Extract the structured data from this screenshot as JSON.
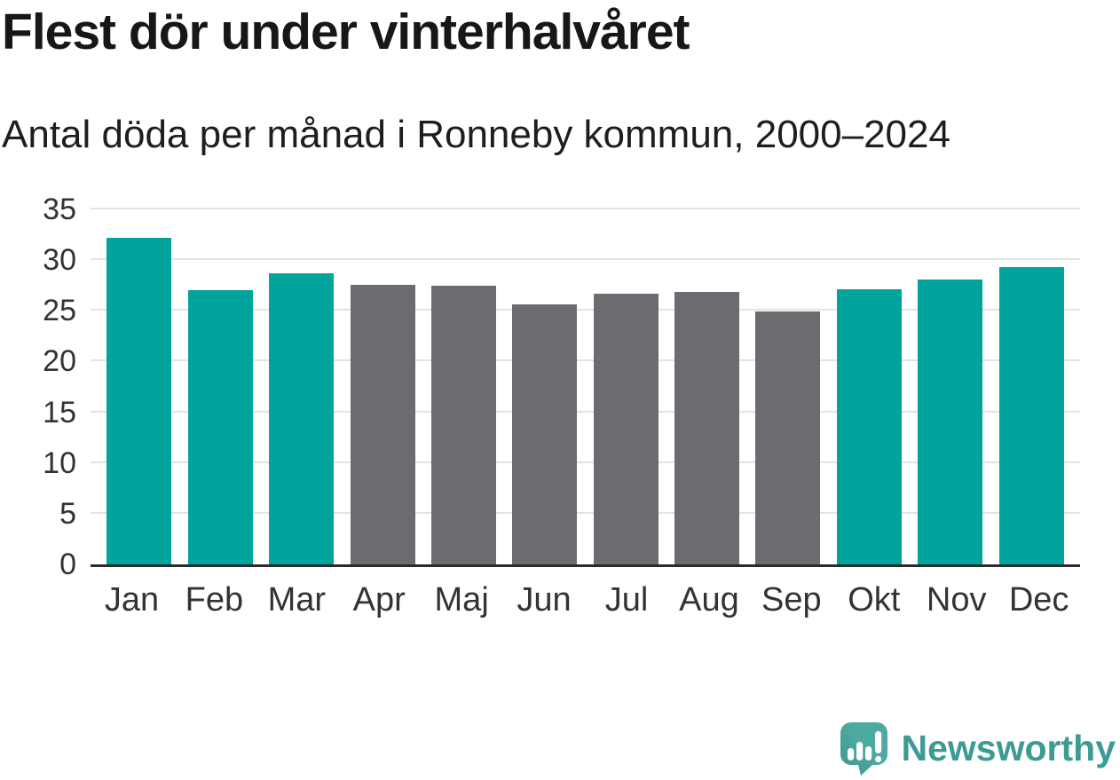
{
  "header": {
    "title": "Flest dör under vinterhalvåret",
    "subtitle": "Antal döda per månad i Ronneby kommun, 2000–2024"
  },
  "chart_data": {
    "type": "bar",
    "title": "Flest dör under vinterhalvåret",
    "subtitle": "Antal döda per månad i Ronneby kommun, 2000–2024",
    "categories": [
      "Jan",
      "Feb",
      "Mar",
      "Apr",
      "Maj",
      "Jun",
      "Jul",
      "Aug",
      "Sep",
      "Okt",
      "Nov",
      "Dec"
    ],
    "values": [
      32.2,
      27.0,
      28.7,
      27.6,
      27.5,
      25.6,
      26.7,
      26.9,
      24.9,
      27.1,
      28.1,
      29.3
    ],
    "bar_color_keys": [
      "teal",
      "teal",
      "teal",
      "gray",
      "gray",
      "gray",
      "gray",
      "gray",
      "gray",
      "teal",
      "teal",
      "teal"
    ],
    "xlabel": "",
    "ylabel": "",
    "ylim": [
      0,
      35
    ],
    "yticks": [
      0,
      5,
      10,
      15,
      20,
      25,
      30,
      35
    ],
    "grid": "horizontal",
    "legend": "none"
  },
  "colors": {
    "teal": "#00a49c",
    "gray": "#6c6c70",
    "gridline": "#e3e3e3",
    "axis_line": "#2b2b2b",
    "tick_label": "#333333",
    "heading_text": "#171717",
    "logo_bubble": "#4da9a2",
    "logo_bubble_shade": "#3f968f",
    "logo_text": "#3d9b94"
  },
  "footer": {
    "brand": "Newsworthy"
  }
}
